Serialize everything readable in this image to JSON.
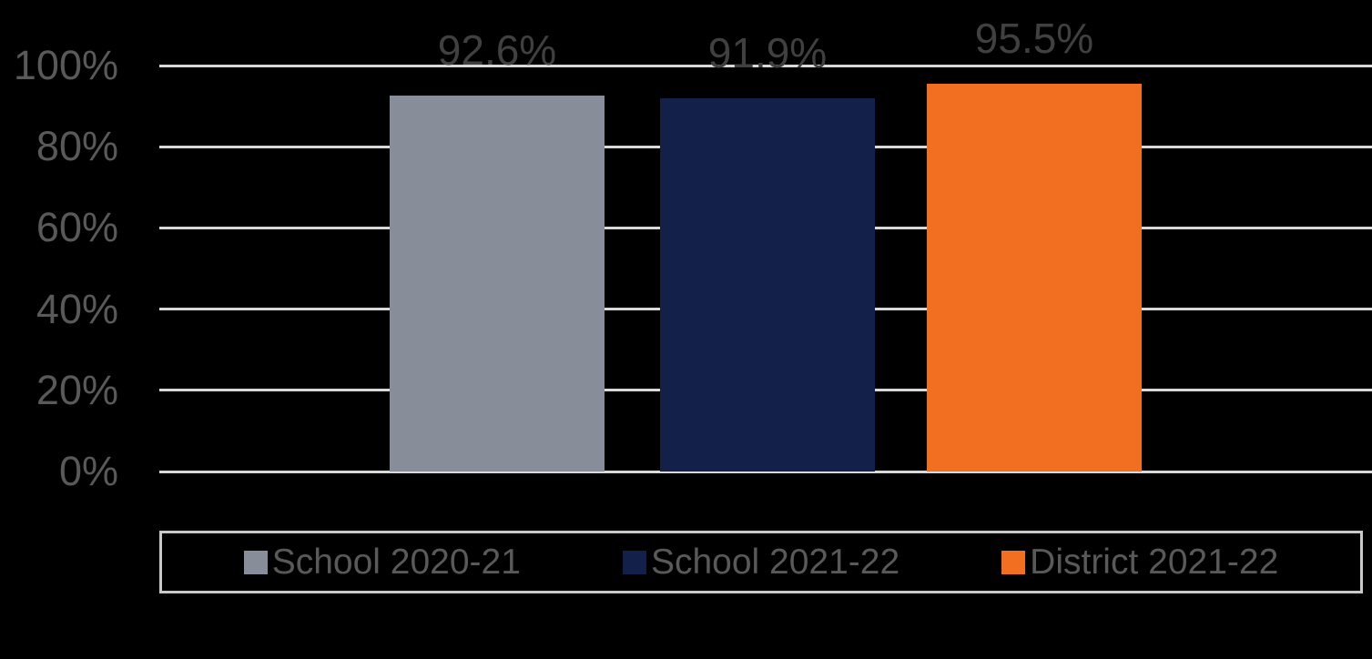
{
  "chart_data": {
    "type": "bar",
    "title": "",
    "categories": [
      "School 2020-21",
      "School 2021-22",
      "District 2021-22"
    ],
    "values": [
      92.6,
      91.9,
      95.5
    ],
    "data_labels": [
      "92.6%",
      "91.9%",
      "95.5%"
    ],
    "bar_colors": [
      "#878E9A",
      "#13204A",
      "#F26F21"
    ],
    "xlabel": "",
    "ylabel": "",
    "ylim": [
      0,
      100
    ],
    "yticks": [
      0,
      20,
      40,
      60,
      80,
      100
    ],
    "ytick_labels": [
      "0%",
      "20%",
      "40%",
      "60%",
      "80%",
      "100%"
    ],
    "grid": true,
    "legend_position": "bottom"
  },
  "legend": {
    "items": [
      {
        "label": "School 2020-21",
        "color": "#878E9A"
      },
      {
        "label": "School 2021-22",
        "color": "#13204A"
      },
      {
        "label": "District 2021-22",
        "color": "#F26F21"
      }
    ]
  },
  "colors": {
    "background": "#000000",
    "gridline": "#D9D9D9",
    "axis_text": "#595959",
    "data_label_text": "#404040",
    "legend_text": "#595959",
    "legend_border": "#C9C9C9"
  }
}
